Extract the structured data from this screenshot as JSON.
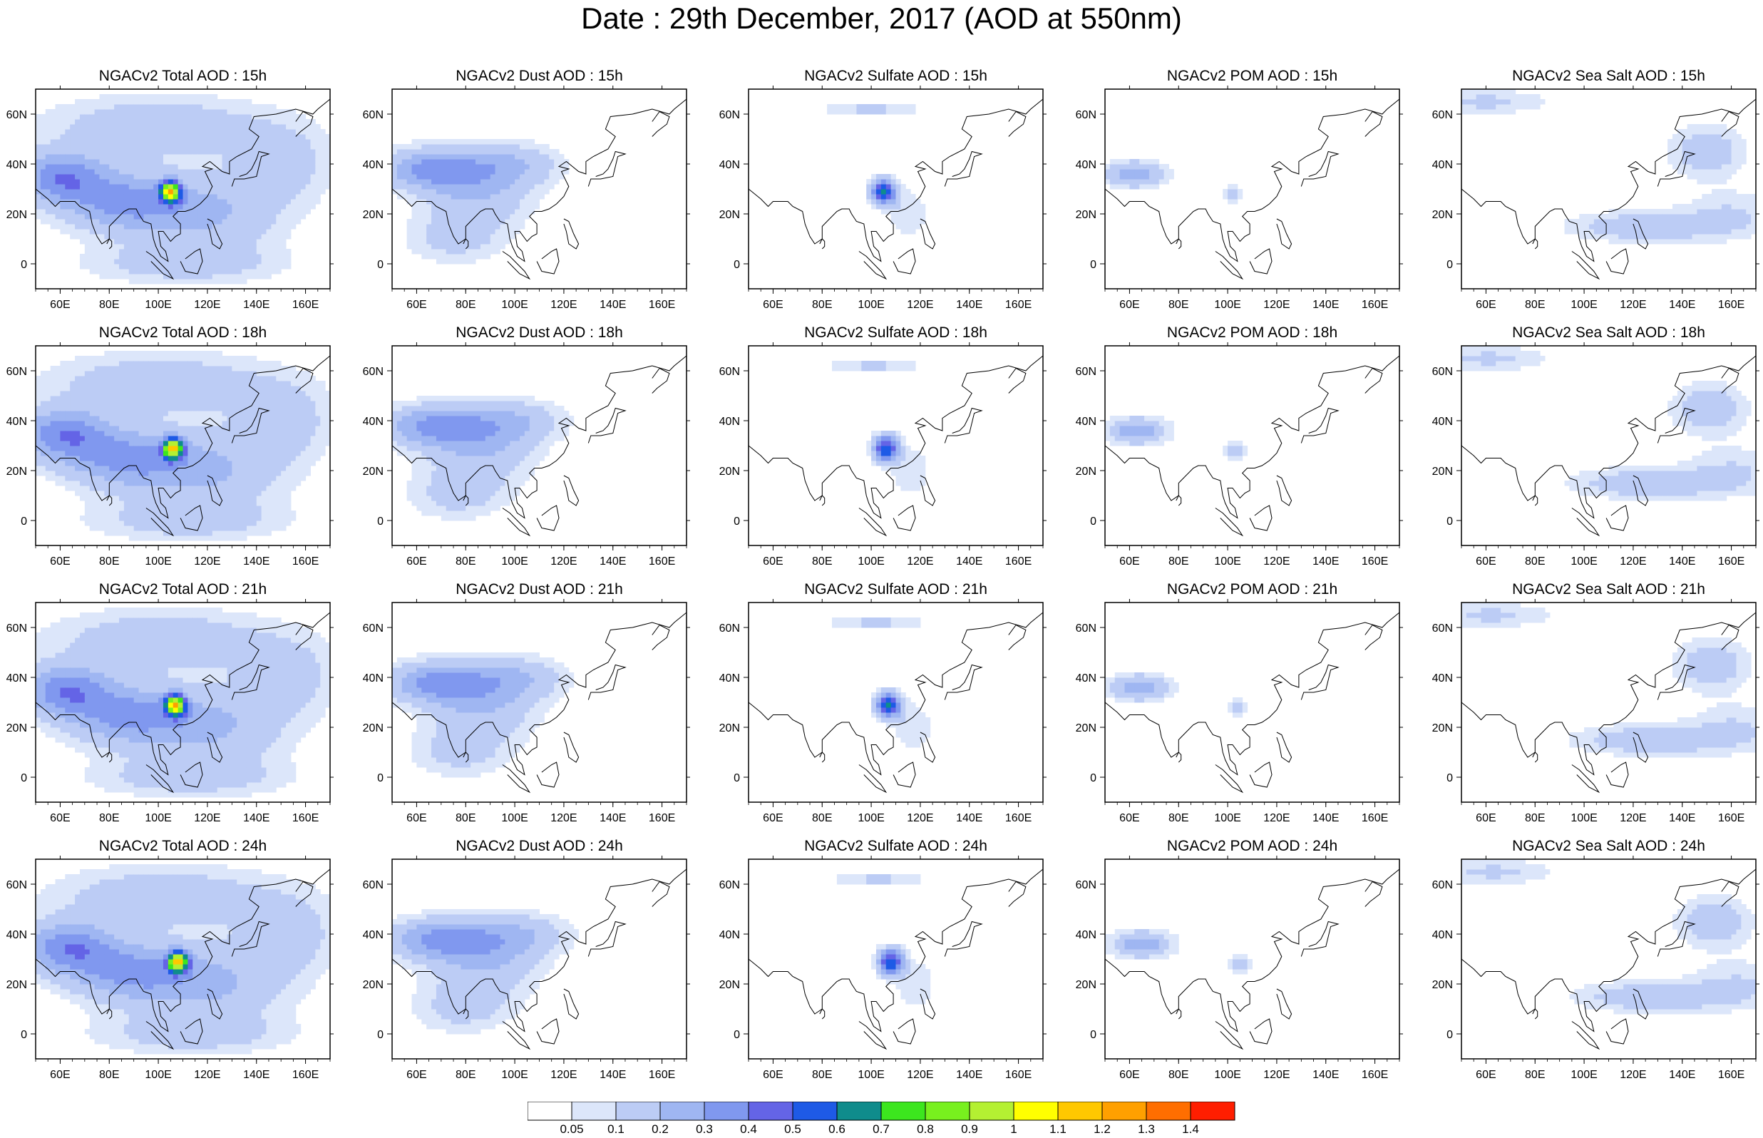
{
  "title": "Date : 29th December, 2017 (AOD at 550nm)",
  "panels": [
    {
      "model": "NGACv2",
      "species": "Total AOD",
      "hour": "15h",
      "title": "NGACv2 Total AOD : 15h"
    },
    {
      "model": "NGACv2",
      "species": "Dust AOD",
      "hour": "15h",
      "title": "NGACv2 Dust AOD : 15h"
    },
    {
      "model": "NGACv2",
      "species": "Sulfate AOD",
      "hour": "15h",
      "title": "NGACv2 Sulfate AOD : 15h"
    },
    {
      "model": "NGACv2",
      "species": "POM AOD",
      "hour": "15h",
      "title": "NGACv2 POM AOD : 15h"
    },
    {
      "model": "NGACv2",
      "species": "Sea Salt AOD",
      "hour": "15h",
      "title": "NGACv2 Sea Salt AOD : 15h"
    },
    {
      "model": "NGACv2",
      "species": "Total AOD",
      "hour": "18h",
      "title": "NGACv2 Total AOD : 18h"
    },
    {
      "model": "NGACv2",
      "species": "Dust AOD",
      "hour": "18h",
      "title": "NGACv2 Dust AOD : 18h"
    },
    {
      "model": "NGACv2",
      "species": "Sulfate AOD",
      "hour": "18h",
      "title": "NGACv2 Sulfate AOD : 18h"
    },
    {
      "model": "NGACv2",
      "species": "POM AOD",
      "hour": "18h",
      "title": "NGACv2 POM AOD : 18h"
    },
    {
      "model": "NGACv2",
      "species": "Sea Salt AOD",
      "hour": "18h",
      "title": "NGACv2 Sea Salt AOD : 18h"
    },
    {
      "model": "NGACv2",
      "species": "Total AOD",
      "hour": "21h",
      "title": "NGACv2 Total AOD : 21h"
    },
    {
      "model": "NGACv2",
      "species": "Dust AOD",
      "hour": "21h",
      "title": "NGACv2 Dust AOD : 21h"
    },
    {
      "model": "NGACv2",
      "species": "Sulfate AOD",
      "hour": "21h",
      "title": "NGACv2 Sulfate AOD : 21h"
    },
    {
      "model": "NGACv2",
      "species": "POM AOD",
      "hour": "21h",
      "title": "NGACv2 POM AOD : 21h"
    },
    {
      "model": "NGACv2",
      "species": "Sea Salt AOD",
      "hour": "21h",
      "title": "NGACv2 Sea Salt AOD : 21h"
    },
    {
      "model": "NGACv2",
      "species": "Total AOD",
      "hour": "24h",
      "title": "NGACv2 Total AOD : 24h"
    },
    {
      "model": "NGACv2",
      "species": "Dust AOD",
      "hour": "24h",
      "title": "NGACv2 Dust AOD : 24h"
    },
    {
      "model": "NGACv2",
      "species": "Sulfate AOD",
      "hour": "24h",
      "title": "NGACv2 Sulfate AOD : 24h"
    },
    {
      "model": "NGACv2",
      "species": "POM AOD",
      "hour": "24h",
      "title": "NGACv2 POM AOD : 24h"
    },
    {
      "model": "NGACv2",
      "species": "Sea Salt AOD",
      "hour": "24h",
      "title": "NGACv2 Sea Salt  AOD : 24h"
    }
  ],
  "map": {
    "lon_ticks": [
      "60E",
      "80E",
      "100E",
      "120E",
      "140E",
      "160E"
    ],
    "lat_ticks": [
      "60N",
      "40N",
      "20N",
      "0"
    ],
    "lon_range": [
      50,
      170
    ],
    "lat_range": [
      -10,
      70
    ]
  },
  "colorbar": {
    "labels": [
      "0.05",
      "0.1",
      "0.2",
      "0.3",
      "0.4",
      "0.5",
      "0.6",
      "0.7",
      "0.8",
      "0.9",
      "1",
      "1.1",
      "1.2",
      "1.3",
      "1.4"
    ],
    "colors": [
      "#ffffff",
      "#dce6fa",
      "#bcccf5",
      "#9fb6f2",
      "#8098ef",
      "#6464e6",
      "#1e5ae6",
      "#0f8c8c",
      "#3ce61e",
      "#78f01e",
      "#b4f032",
      "#ffff00",
      "#ffc800",
      "#ffa000",
      "#ff6e00",
      "#ff1e00"
    ]
  }
}
